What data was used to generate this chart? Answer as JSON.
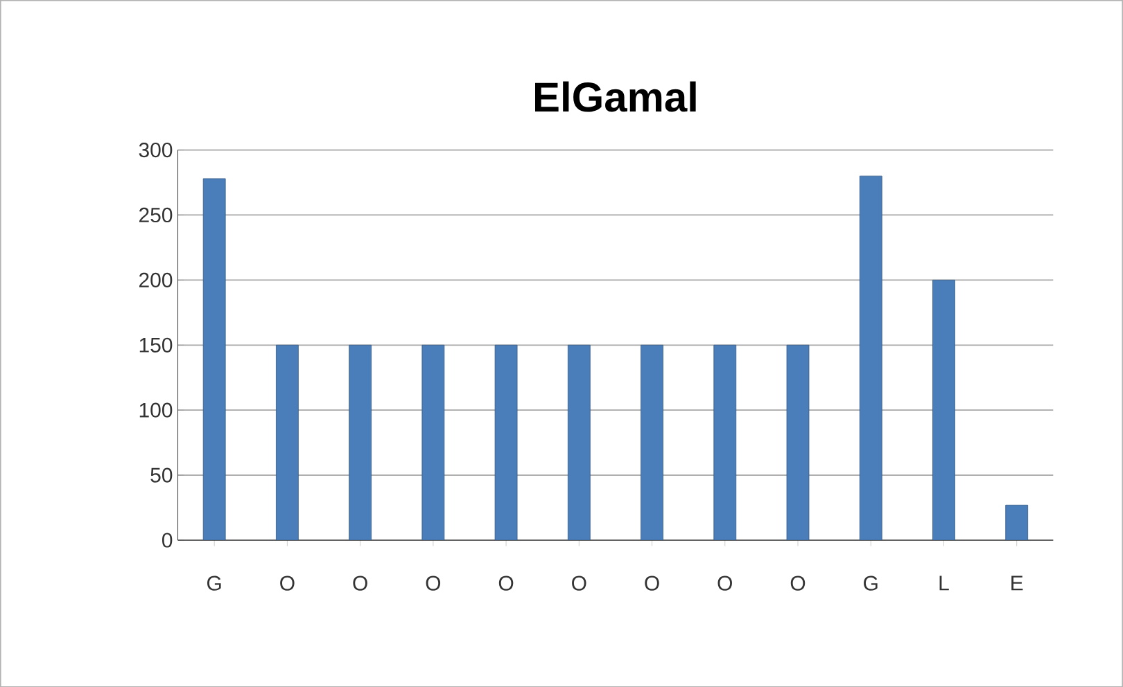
{
  "chart_data": {
    "type": "bar",
    "title": "ElGamal",
    "categories": [
      "G",
      "O",
      "O",
      "O",
      "O",
      "O",
      "O",
      "O",
      "O",
      "G",
      "L",
      "E"
    ],
    "values": [
      278,
      150,
      150,
      150,
      150,
      150,
      150,
      150,
      150,
      280,
      200,
      27
    ],
    "color": "#4a7ebb",
    "ylim": [
      0,
      300
    ],
    "yticks": [
      0,
      50,
      100,
      150,
      200,
      250,
      300
    ],
    "grid": "y"
  }
}
